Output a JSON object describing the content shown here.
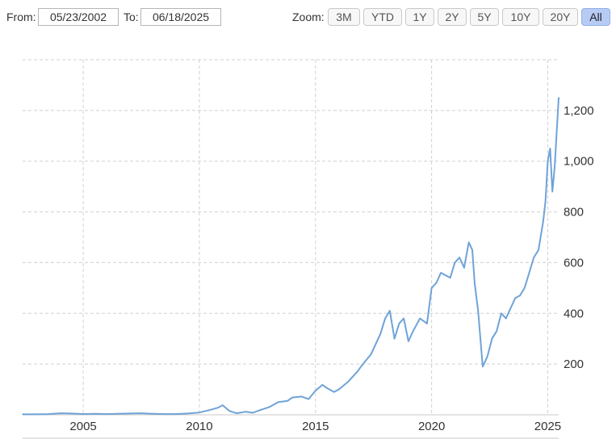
{
  "toolbar": {
    "from_label": "From:",
    "from_value": "05/23/2002",
    "to_label": "To:",
    "to_value": "06/18/2025",
    "zoom_label": "Zoom:",
    "zoom_buttons": [
      "3M",
      "YTD",
      "1Y",
      "2Y",
      "5Y",
      "10Y",
      "20Y",
      "All"
    ],
    "active_zoom": "All"
  },
  "colors": {
    "line": "#6fa3d8",
    "grid": "#d0d0d0",
    "active_button": "#b6ccf5"
  },
  "chart_data": {
    "type": "line",
    "title": "",
    "xlabel": "",
    "ylabel": "",
    "grid": true,
    "xlim": [
      2002.39,
      2025.47
    ],
    "ylim": [
      0,
      1400
    ],
    "x_ticks": [
      2005,
      2010,
      2015,
      2020,
      2025
    ],
    "x_tick_labels": [
      "2005",
      "2010",
      "2015",
      "2020",
      "2025"
    ],
    "y_ticks": [
      200,
      400,
      600,
      800,
      1000,
      1200
    ],
    "y_tick_labels": [
      "200",
      "400",
      "600",
      "800",
      "1,000",
      "1,200"
    ],
    "series": [
      {
        "x": [
          2002.39,
          2003.0,
          2003.5,
          2004.0,
          2004.5,
          2005.0,
          2005.5,
          2006.0,
          2006.5,
          2007.0,
          2007.5,
          2008.0,
          2008.5,
          2009.0,
          2009.5,
          2010.0,
          2010.5,
          2010.8,
          2011.0,
          2011.3,
          2011.6,
          2012.0,
          2012.3,
          2012.6,
          2013.0,
          2013.4,
          2013.8,
          2014.0,
          2014.4,
          2014.7,
          2015.0,
          2015.3,
          2015.5,
          2015.8,
          2016.0,
          2016.4,
          2016.8,
          2017.0,
          2017.4,
          2017.8,
          2018.0,
          2018.2,
          2018.4,
          2018.6,
          2018.8,
          2019.0,
          2019.2,
          2019.5,
          2019.8,
          2020.0,
          2020.2,
          2020.4,
          2020.6,
          2020.8,
          2021.0,
          2021.2,
          2021.4,
          2021.6,
          2021.75,
          2021.85,
          2022.0,
          2022.2,
          2022.4,
          2022.6,
          2022.8,
          2023.0,
          2023.2,
          2023.4,
          2023.6,
          2023.8,
          2024.0,
          2024.2,
          2024.4,
          2024.6,
          2024.8,
          2024.9,
          2025.0,
          2025.1,
          2025.2,
          2025.3,
          2025.47
        ],
        "y": [
          2,
          2,
          3,
          6,
          5,
          3,
          4,
          3,
          4,
          5,
          6,
          4,
          3,
          3,
          5,
          9,
          20,
          28,
          38,
          15,
          6,
          12,
          8,
          18,
          30,
          50,
          55,
          68,
          72,
          62,
          95,
          118,
          105,
          90,
          100,
          130,
          170,
          195,
          240,
          320,
          380,
          410,
          300,
          360,
          380,
          290,
          330,
          380,
          360,
          500,
          520,
          560,
          550,
          540,
          600,
          620,
          580,
          680,
          650,
          520,
          410,
          190,
          230,
          300,
          330,
          400,
          380,
          420,
          460,
          470,
          500,
          560,
          620,
          650,
          760,
          840,
          1000,
          1050,
          880,
          980,
          1250
        ]
      }
    ]
  }
}
